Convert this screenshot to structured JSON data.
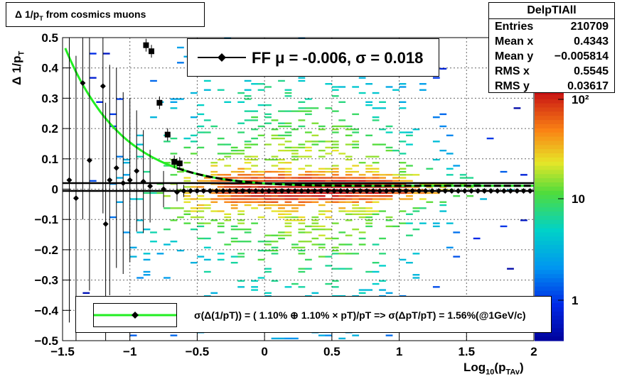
{
  "chart_data": {
    "type": "heatmap",
    "title": "Δ 1/p_T from cosmics muons",
    "title_main": "Δ 1/p",
    "title_sub": "T",
    "title_rest": " from cosmics muons",
    "xlabel_main": "Log",
    "xlabel_sub1": "10",
    "xlabel_mid": "(p",
    "xlabel_sub2": "TAv",
    "xlabel_end": ")",
    "ylabel_main": "Δ 1/p",
    "ylabel_sub": "T",
    "xlim": [
      -1.5,
      2.0
    ],
    "ylim": [
      -0.5,
      0.5
    ],
    "x_ticks": [
      "−1.5",
      "−1",
      "−0.5",
      "0",
      "0.5",
      "1",
      "1.5",
      "2"
    ],
    "y_ticks": [
      "−0.5",
      "−0.4",
      "−0.3",
      "−0.2",
      "−0.1",
      "0",
      "0.1",
      "0.2",
      "0.3",
      "0.4",
      "0.5"
    ],
    "grid": true,
    "colorbar": {
      "scale": "log",
      "ticks": [
        "1",
        "10",
        "10²"
      ]
    },
    "profile_points": [
      {
        "x": -1.45,
        "y": 0.03,
        "err": 0.47
      },
      {
        "x": -1.4,
        "y": -0.03,
        "err": 0.47
      },
      {
        "x": -1.35,
        "y": 0.35,
        "err": 0.45
      },
      {
        "x": -1.3,
        "y": 0.095,
        "err": 0.43
      },
      {
        "x": -1.2,
        "y": 0.34,
        "err": 0.42
      },
      {
        "x": -1.18,
        "y": -0.115,
        "err": 0.4
      },
      {
        "x": -1.15,
        "y": 0.03,
        "err": 0.38
      },
      {
        "x": -1.1,
        "y": 0.07,
        "err": 0.33
      },
      {
        "x": -1.05,
        "y": 0.02,
        "err": 0.3
      },
      {
        "x": -1.0,
        "y": 0.03,
        "err": 0.27
      },
      {
        "x": -0.95,
        "y": 0.06,
        "err": 0.2
      },
      {
        "x": -0.9,
        "y": 0.025,
        "err": 0.17
      },
      {
        "x": -0.85,
        "y": 0.01,
        "err": 0.12
      },
      {
        "x": -0.75,
        "y": 0.0,
        "err": 0.06
      },
      {
        "x": -0.65,
        "y": -0.01,
        "err": 0.03
      },
      {
        "x": -0.6,
        "y": -0.006,
        "err": 0.02
      }
    ],
    "square_points": [
      {
        "x": -0.88,
        "y": 0.475
      },
      {
        "x": -0.84,
        "y": 0.455
      },
      {
        "x": -0.78,
        "y": 0.285
      },
      {
        "x": -0.72,
        "y": 0.18
      },
      {
        "x": -0.67,
        "y": 0.09
      },
      {
        "x": -0.63,
        "y": 0.085
      }
    ],
    "mean_line": {
      "y": -0.006,
      "x_start": -0.6,
      "x_end": 2.0
    },
    "fit_curve": {
      "stochastic": 0.011,
      "constant": 0.011
    }
  },
  "stats": {
    "title": "DelpTIAll",
    "rows": [
      {
        "label": "Entries",
        "value": "210709"
      },
      {
        "label": "Mean x",
        "value": "0.4343"
      },
      {
        "label": "Mean y",
        "value": "−0.005814"
      },
      {
        "label": "RMS x",
        "value": "0.5545"
      },
      {
        "label": "RMS y",
        "value": "0.03617"
      }
    ]
  },
  "fit_legend": {
    "text": "FF μ = -0.006, σ =   0.018"
  },
  "resolution_legend": {
    "text": "σ(Δ(1/pT)) = ( 1.10% ⊕  1.10% × pT)/pT => σ(ΔpT/pT) =  1.56%(@1GeV/c)"
  },
  "colors": {
    "fit_curve": "#22ee22",
    "markers": "#000000"
  }
}
